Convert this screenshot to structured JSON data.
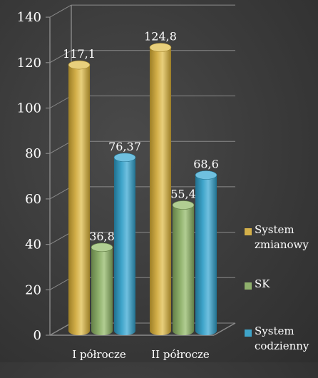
{
  "colors": {
    "series": [
      "#d4b04a",
      "#8fb06c",
      "#3fa4c9"
    ],
    "tops": [
      "#e8cf7c",
      "#b1cd92",
      "#6fc0df"
    ],
    "shades": [
      "#9c7e26",
      "#637f47",
      "#21718f"
    ],
    "grid": "#8a8a8a",
    "text": "#ffffff"
  },
  "chart_data": {
    "type": "bar",
    "categories": [
      "I półrocze",
      "II półrocze"
    ],
    "series": [
      {
        "name": "System zmianowy",
        "values": [
          117.1,
          124.8
        ],
        "labels": [
          "117,1",
          "124,8"
        ]
      },
      {
        "name": "SK",
        "values": [
          36.8,
          55.4
        ],
        "labels": [
          "36,8",
          "55,4"
        ]
      },
      {
        "name": "System codzienny",
        "values": [
          76.37,
          68.6
        ],
        "labels": [
          "76,37",
          "68,6"
        ]
      }
    ],
    "yticks": [
      0,
      20,
      40,
      60,
      80,
      100,
      120,
      140
    ],
    "ylim": [
      0,
      140
    ],
    "grid": true,
    "legend_position": "right",
    "title": "",
    "xlabel": "",
    "ylabel": ""
  },
  "legend": {
    "items": [
      {
        "line1": "System",
        "line2": "zmianowy"
      },
      {
        "line1": "SK",
        "line2": ""
      },
      {
        "line1": "System",
        "line2": "codzienny"
      }
    ]
  }
}
